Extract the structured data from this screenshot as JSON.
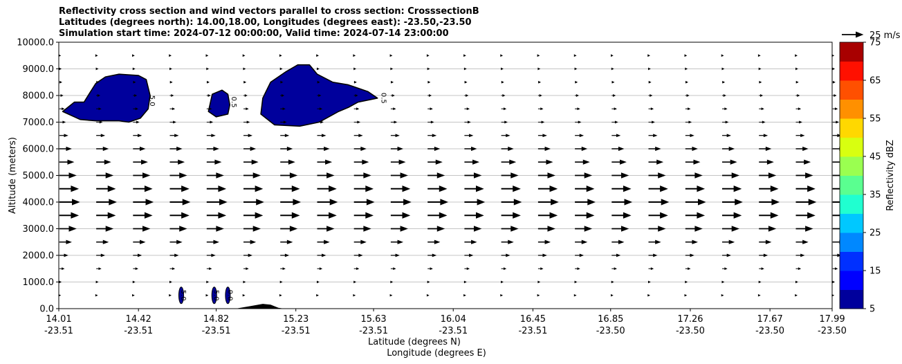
{
  "chart_data": {
    "type": "contour+quiver",
    "title_lines": [
      "Reflectivity cross section and wind vectors parallel to cross section: CrosssectionB",
      "Latitudes (degrees north): 14.00,18.00, Longitudes (degrees east): -23.50,-23.50",
      "Simulation start time: 2024-07-12 00:00:00, Valid time: 2024-07-14 23:00:00"
    ],
    "ylabel": "Altitude (meters)",
    "xlabel_lines": [
      "Latitude (degrees N)",
      "Longitude (degrees E)"
    ],
    "ylim": [
      0,
      10000
    ],
    "yticks": [
      0,
      1000,
      2000,
      3000,
      4000,
      5000,
      6000,
      7000,
      8000,
      9000,
      10000
    ],
    "ytick_labels": [
      "0.0",
      "1000.0",
      "2000.0",
      "3000.0",
      "4000.0",
      "5000.0",
      "6000.0",
      "7000.0",
      "8000.0",
      "9000.0",
      "10000.0"
    ],
    "xlim": [
      14.01,
      17.99
    ],
    "xticks": [
      14.01,
      14.42,
      14.82,
      15.23,
      15.63,
      16.04,
      16.45,
      16.85,
      17.26,
      17.67,
      17.99
    ],
    "xtick_lat_labels": [
      "14.01",
      "14.42",
      "14.82",
      "15.23",
      "15.63",
      "16.04",
      "16.45",
      "16.85",
      "17.26",
      "17.67",
      "17.99"
    ],
    "xtick_lon_labels": [
      "-23.51",
      "-23.51",
      "-23.51",
      "-23.51",
      "-23.51",
      "-23.51",
      "-23.51",
      "-23.50",
      "-23.50",
      "-23.50",
      "-23.50"
    ],
    "grid": "horizontal",
    "quiver_key": {
      "label": "25 m/s",
      "speed": 25
    },
    "wind_profile": [
      {
        "alt": 500,
        "speed": 1
      },
      {
        "alt": 1000,
        "speed": 1.5
      },
      {
        "alt": 1500,
        "speed": 4
      },
      {
        "alt": 2000,
        "speed": 7
      },
      {
        "alt": 2500,
        "speed": 10
      },
      {
        "alt": 3000,
        "speed": 14
      },
      {
        "alt": 3500,
        "speed": 16
      },
      {
        "alt": 4000,
        "speed": 17
      },
      {
        "alt": 4500,
        "speed": 16
      },
      {
        "alt": 5000,
        "speed": 14
      },
      {
        "alt": 5500,
        "speed": 12
      },
      {
        "alt": 6000,
        "speed": 10
      },
      {
        "alt": 6500,
        "speed": 7
      },
      {
        "alt": 7000,
        "speed": 5
      },
      {
        "alt": 7500,
        "speed": 4
      },
      {
        "alt": 8000,
        "speed": 3
      },
      {
        "alt": 8500,
        "speed": 2
      },
      {
        "alt": 9000,
        "speed": 1.5
      },
      {
        "alt": 9500,
        "speed": 1
      }
    ],
    "reflectivity_regions": [
      {
        "dbz": 5,
        "points": [
          [
            14.03,
            7400
          ],
          [
            14.09,
            7750
          ],
          [
            14.14,
            7750
          ],
          [
            14.17,
            8100
          ],
          [
            14.2,
            8450
          ],
          [
            14.25,
            8700
          ],
          [
            14.32,
            8800
          ],
          [
            14.42,
            8750
          ],
          [
            14.46,
            8600
          ],
          [
            14.47,
            8300
          ],
          [
            14.48,
            8000
          ],
          [
            14.47,
            7500
          ],
          [
            14.43,
            7150
          ],
          [
            14.37,
            7000
          ],
          [
            14.32,
            7050
          ],
          [
            14.2,
            7050
          ],
          [
            14.12,
            7100
          ]
        ]
      },
      {
        "dbz": 5,
        "points": [
          [
            14.78,
            7400
          ],
          [
            14.8,
            8050
          ],
          [
            14.85,
            8200
          ],
          [
            14.88,
            8050
          ],
          [
            14.89,
            7650
          ],
          [
            14.88,
            7300
          ],
          [
            14.82,
            7200
          ]
        ]
      },
      {
        "dbz": 5,
        "points": [
          [
            15.05,
            7300
          ],
          [
            15.06,
            7900
          ],
          [
            15.1,
            8500
          ],
          [
            15.18,
            8900
          ],
          [
            15.24,
            9150
          ],
          [
            15.3,
            9150
          ],
          [
            15.34,
            8800
          ],
          [
            15.42,
            8500
          ],
          [
            15.5,
            8400
          ],
          [
            15.6,
            8150
          ],
          [
            15.65,
            7900
          ],
          [
            15.55,
            7750
          ],
          [
            15.5,
            7550
          ],
          [
            15.45,
            7400
          ],
          [
            15.35,
            7000
          ],
          [
            15.25,
            6850
          ],
          [
            15.12,
            6900
          ]
        ]
      }
    ],
    "contour_labels": [
      {
        "text": "5.0",
        "lat": 14.48,
        "alt": 7800
      },
      {
        "text": "0.5",
        "lat": 14.9,
        "alt": 7750
      },
      {
        "text": "0.5",
        "lat": 15.67,
        "alt": 7900
      },
      {
        "text": "5.0",
        "lat": 14.64,
        "alt": 500
      },
      {
        "text": "5.0",
        "lat": 14.81,
        "alt": 500
      },
      {
        "text": "0.0",
        "lat": 14.88,
        "alt": 500
      }
    ],
    "terrain": [
      [
        14.92,
        0
      ],
      [
        15.0,
        100
      ],
      [
        15.06,
        180
      ],
      [
        15.1,
        150
      ],
      [
        15.14,
        30
      ],
      [
        15.17,
        0
      ]
    ],
    "colorbar": {
      "label": "Reflectivity dBZ",
      "levels": [
        5,
        10,
        15,
        20,
        25,
        30,
        35,
        40,
        45,
        50,
        55,
        60,
        65,
        70,
        75
      ],
      "tick_labels": [
        "5",
        "15",
        "25",
        "35",
        "45",
        "55",
        "65",
        "75"
      ],
      "colors": [
        "#00009c",
        "#0000ff",
        "#0030ff",
        "#0088ff",
        "#00c8ff",
        "#20ffd0",
        "#5aff90",
        "#9aff50",
        "#d8ff10",
        "#ffd800",
        "#ff9000",
        "#ff5000",
        "#ff1000",
        "#a80000"
      ]
    }
  }
}
